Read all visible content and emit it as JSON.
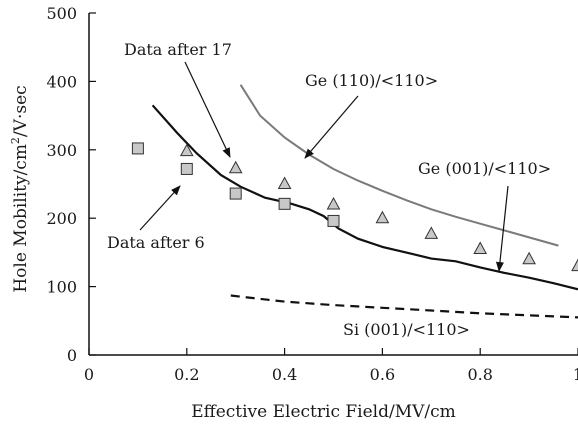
{
  "chart_data": {
    "type": "scatter",
    "xlabel": "Effective Electric Field/MV/cm",
    "ylabel_main": "Hole Mobility/cm",
    "ylabel_sup": "2",
    "ylabel_tail": "/V·sec",
    "xlim": [
      0,
      1
    ],
    "ylim": [
      0,
      500
    ],
    "x_ticks": [
      0,
      0.2,
      0.4,
      0.6,
      0.8,
      1
    ],
    "x_tick_labels": [
      "0",
      "0.2",
      "0.4",
      "0.6",
      "0.8",
      "1"
    ],
    "y_ticks": [
      0,
      100,
      200,
      300,
      400,
      500
    ],
    "y_tick_labels": [
      "0",
      "100",
      "200",
      "300",
      "400",
      "500"
    ],
    "series": [
      {
        "name": "Data after 6",
        "kind": "scatter",
        "marker": "square",
        "color": "#c8c8c8",
        "x": [
          0.1,
          0.2,
          0.3,
          0.4,
          0.5
        ],
        "y": [
          302,
          272,
          236,
          221,
          196
        ]
      },
      {
        "name": "Data after 17",
        "kind": "scatter",
        "marker": "triangle",
        "color": "#c8c8c8",
        "x": [
          0.2,
          0.3,
          0.4,
          0.5,
          0.6,
          0.7,
          0.8,
          0.9,
          1.0
        ],
        "y": [
          298,
          273,
          250,
          220,
          200,
          177,
          155,
          140,
          130
        ]
      },
      {
        "name": "Ge (001)/<110>",
        "kind": "line",
        "style": "solid",
        "color": "#111111",
        "x": [
          0.13,
          0.18,
          0.22,
          0.27,
          0.31,
          0.36,
          0.41,
          0.45,
          0.48,
          0.51,
          0.55,
          0.6,
          0.66,
          0.7,
          0.75,
          0.8,
          0.85,
          0.9,
          0.95,
          1.0
        ],
        "y": [
          365,
          325,
          295,
          263,
          246,
          230,
          222,
          213,
          203,
          185,
          170,
          158,
          148,
          141,
          137,
          128,
          120,
          113,
          105,
          96
        ]
      },
      {
        "name": "Ge (110)/<110>",
        "kind": "line",
        "style": "solid",
        "color": "#7a7a7a",
        "x": [
          0.31,
          0.35,
          0.4,
          0.45,
          0.5,
          0.55,
          0.6,
          0.65,
          0.7,
          0.75,
          0.8,
          0.85,
          0.9,
          0.96
        ],
        "y": [
          395,
          350,
          318,
          293,
          272,
          255,
          240,
          226,
          213,
          202,
          192,
          182,
          172,
          160
        ]
      },
      {
        "name": "Si (001)/<110>",
        "kind": "line",
        "style": "dashed",
        "color": "#111111",
        "x": [
          0.29,
          0.35,
          0.4,
          0.5,
          0.6,
          0.7,
          0.8,
          0.9,
          1.0
        ],
        "y": [
          87,
          82,
          78,
          73,
          69,
          65,
          61,
          58,
          55
        ]
      }
    ],
    "annotations": [
      {
        "text": "Data after 17"
      },
      {
        "text": "Ge (110)/<110>"
      },
      {
        "text": "Ge (001)/<110>"
      },
      {
        "text": "Data after 6"
      },
      {
        "text": "Si (001)/<110>"
      }
    ]
  }
}
